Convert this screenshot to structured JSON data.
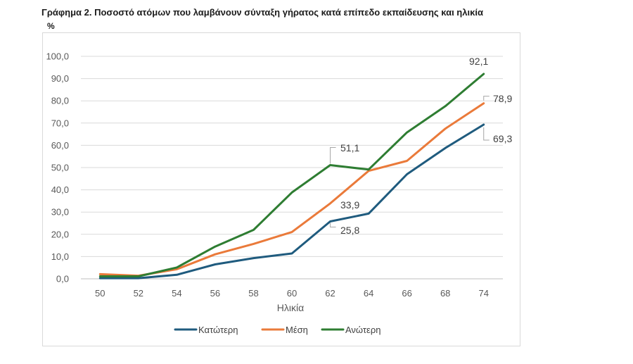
{
  "chart_data": {
    "type": "line",
    "title": "Γράφημα 2. Ποσοστό ατόμων που λαμβάνουν σύνταξη γήρατος κατά επίπεδο εκπαίδευσης και ηλικία",
    "unit_label": "%",
    "xlabel": "Ηλικία",
    "ylabel": "",
    "categories": [
      "50",
      "52",
      "54",
      "56",
      "58",
      "60",
      "62",
      "64",
      "66",
      "68",
      "74"
    ],
    "ylim": [
      0,
      100
    ],
    "yticks": [
      "0,0",
      "10,0",
      "20,0",
      "30,0",
      "40,0",
      "50,0",
      "60,0",
      "70,0",
      "80,0",
      "90,0",
      "100,0"
    ],
    "grid": true,
    "legend_position": "bottom",
    "series": [
      {
        "name": "Κατώτερη",
        "color": "#1f5b7e",
        "values": [
          0.3,
          0.3,
          1.8,
          6.5,
          9.3,
          11.4,
          25.8,
          29.3,
          47.0,
          58.8,
          69.3
        ],
        "labels": [
          {
            "index": 6,
            "text": "25,8"
          },
          {
            "index": 10,
            "text": "69,3"
          }
        ]
      },
      {
        "name": "Μέση",
        "color": "#ea7a3a",
        "values": [
          2.1,
          1.4,
          4.3,
          11.0,
          15.7,
          21.0,
          33.9,
          48.5,
          53.0,
          67.5,
          78.9
        ],
        "labels": [
          {
            "index": 6,
            "text": "33,9"
          },
          {
            "index": 10,
            "text": "78,9"
          }
        ]
      },
      {
        "name": "Ανώτερη",
        "color": "#2e7d32",
        "values": [
          1.1,
          1.1,
          5.1,
          14.5,
          22.0,
          38.8,
          51.1,
          49.1,
          65.8,
          77.6,
          92.1
        ],
        "labels": [
          {
            "index": 6,
            "text": "51,1"
          },
          {
            "index": 10,
            "text": "92,1"
          }
        ]
      }
    ]
  }
}
